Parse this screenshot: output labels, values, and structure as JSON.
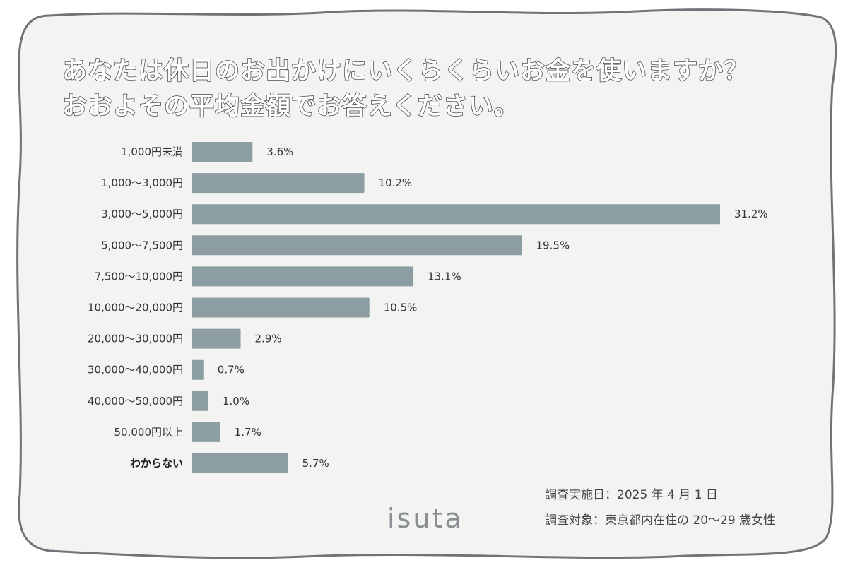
{
  "header": {
    "title_line1": "あなたは休日のお出かけにいくらくらいお金を使いますか？",
    "title_line2": "おおよその平均金額でお答えください。"
  },
  "chart_data": {
    "type": "bar",
    "orientation": "horizontal",
    "categories": [
      "1,000円未満",
      "1,000〜3,000円",
      "3,000〜5,000円",
      "5,000〜7,500円",
      "7,500〜10,000円",
      "10,000〜20,000円",
      "20,000〜30,000円",
      "30,000〜40,000円",
      "40,000〜50,000円",
      "50,000円以上",
      "わからない"
    ],
    "values": [
      3.6,
      10.2,
      31.2,
      19.5,
      13.1,
      10.5,
      2.9,
      0.7,
      1.0,
      1.7,
      5.7
    ],
    "value_labels": [
      "3.6%",
      "10.2%",
      "31.2%",
      "19.5%",
      "13.1%",
      "10.5%",
      "2.9%",
      "0.7%",
      "1.0%",
      "1.7%",
      "5.7%"
    ],
    "unit": "%",
    "xlim": [
      0,
      31.2
    ],
    "grid": false,
    "legend": "none",
    "bar_color": "#8c9ea2",
    "title": "あなたは休日のお出かけにいくらくらいお金を使いますか？ おおよその平均金額でお答えください。"
  },
  "footnotes": {
    "date": "調査実施日：2025 年 4 月 1 日",
    "target": "調査対象：東京都内在住の 20〜29 歳女性"
  },
  "branding": {
    "logo": "isuta"
  },
  "colors": {
    "frame_border": "#6f7478",
    "frame_fill": "#f3f3f1",
    "bar": "#8c9ea2"
  }
}
